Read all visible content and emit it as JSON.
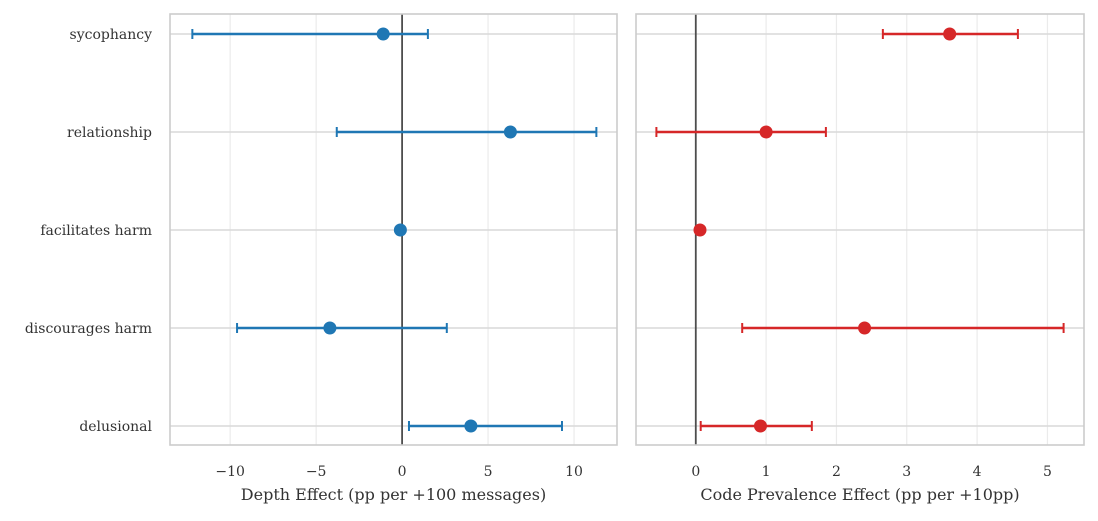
{
  "chart_data": {
    "type": "forest",
    "categories": [
      "sycophancy",
      "relationship",
      "facilitates harm",
      "discourages harm",
      "delusional"
    ],
    "panels": [
      {
        "xlabel": "Depth Effect (pp per +100 messages)",
        "xlim": [
          -13.5,
          12.5
        ],
        "xticks": [
          -10,
          -5,
          0,
          5,
          10
        ],
        "xtick_labels": [
          "−10",
          "−5",
          "0",
          "5",
          "10"
        ],
        "color": "#1f77b4",
        "points": [
          {
            "category": "sycophancy",
            "estimate": -1.1,
            "ci_low": -12.2,
            "ci_high": 1.5
          },
          {
            "category": "relationship",
            "estimate": 6.3,
            "ci_low": -3.8,
            "ci_high": 11.3
          },
          {
            "category": "facilitates harm",
            "estimate": -0.1,
            "ci_low": -0.2,
            "ci_high": 0.0
          },
          {
            "category": "discourages harm",
            "estimate": -4.2,
            "ci_low": -9.6,
            "ci_high": 2.6
          },
          {
            "category": "delusional",
            "estimate": 4.0,
            "ci_low": 0.4,
            "ci_high": 9.3
          }
        ]
      },
      {
        "xlabel": "Code Prevalence Effect (pp per +10pp)",
        "xlim": [
          -0.85,
          5.52
        ],
        "xticks": [
          0,
          1,
          2,
          3,
          4,
          5
        ],
        "xtick_labels": [
          "0",
          "1",
          "2",
          "3",
          "4",
          "5"
        ],
        "color": "#d62728",
        "points": [
          {
            "category": "sycophancy",
            "estimate": 3.61,
            "ci_low": 2.66,
            "ci_high": 4.58
          },
          {
            "category": "relationship",
            "estimate": 1.0,
            "ci_low": -0.56,
            "ci_high": 1.85
          },
          {
            "category": "facilitates harm",
            "estimate": 0.06,
            "ci_low": 0.04,
            "ci_high": 0.08
          },
          {
            "category": "discourages harm",
            "estimate": 2.4,
            "ci_low": 0.66,
            "ci_high": 5.23
          },
          {
            "category": "delusional",
            "estimate": 0.92,
            "ci_low": 0.07,
            "ci_high": 1.65
          }
        ]
      }
    ],
    "reference_line": 0,
    "grid": true
  }
}
